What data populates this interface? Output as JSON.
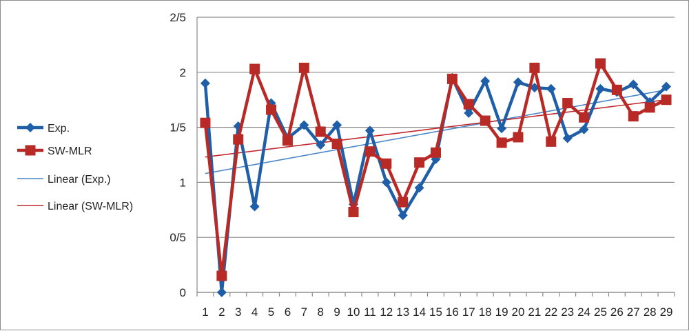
{
  "chart_data": {
    "type": "line",
    "title": "",
    "xlabel": "",
    "ylabel": "",
    "x": [
      1,
      2,
      3,
      4,
      5,
      6,
      7,
      8,
      9,
      10,
      11,
      12,
      13,
      14,
      15,
      16,
      17,
      18,
      19,
      20,
      21,
      22,
      23,
      24,
      25,
      26,
      27,
      28,
      29
    ],
    "y_ticks": [
      {
        "value": 0,
        "label": "0"
      },
      {
        "value": 0.5,
        "label": "0/5"
      },
      {
        "value": 1,
        "label": "1"
      },
      {
        "value": 1.5,
        "label": "1/5"
      },
      {
        "value": 2,
        "label": "2"
      },
      {
        "value": 2.5,
        "label": "2/5"
      }
    ],
    "ylim": [
      0,
      2.5
    ],
    "grid": true,
    "legend_position": "left",
    "series": [
      {
        "name": "Exp.",
        "color": "#1f5fa8",
        "marker": "diamond",
        "values": [
          1.9,
          0.0,
          1.51,
          0.78,
          1.72,
          1.4,
          1.52,
          1.34,
          1.52,
          0.8,
          1.47,
          1.0,
          0.7,
          0.95,
          1.21,
          1.95,
          1.63,
          1.92,
          1.49,
          1.91,
          1.86,
          1.85,
          1.4,
          1.48,
          1.85,
          1.82,
          1.89,
          1.73,
          1.87
        ]
      },
      {
        "name": "SW-MLR",
        "color": "#b82a26",
        "marker": "square",
        "values": [
          1.54,
          0.15,
          1.39,
          2.03,
          1.66,
          1.38,
          2.04,
          1.46,
          1.35,
          0.73,
          1.28,
          1.17,
          0.82,
          1.18,
          1.27,
          1.94,
          1.71,
          1.56,
          1.36,
          1.41,
          2.04,
          1.37,
          1.72,
          1.59,
          2.08,
          1.84,
          1.6,
          1.68,
          1.75
        ]
      },
      {
        "name": "Linear (Exp.)",
        "color": "#4a86c8",
        "type": "trendline",
        "start": 1.08,
        "end": 1.84
      },
      {
        "name": "Linear (SW-MLR)",
        "color": "#c0282d",
        "type": "trendline",
        "start": 1.23,
        "end": 1.75
      }
    ]
  }
}
